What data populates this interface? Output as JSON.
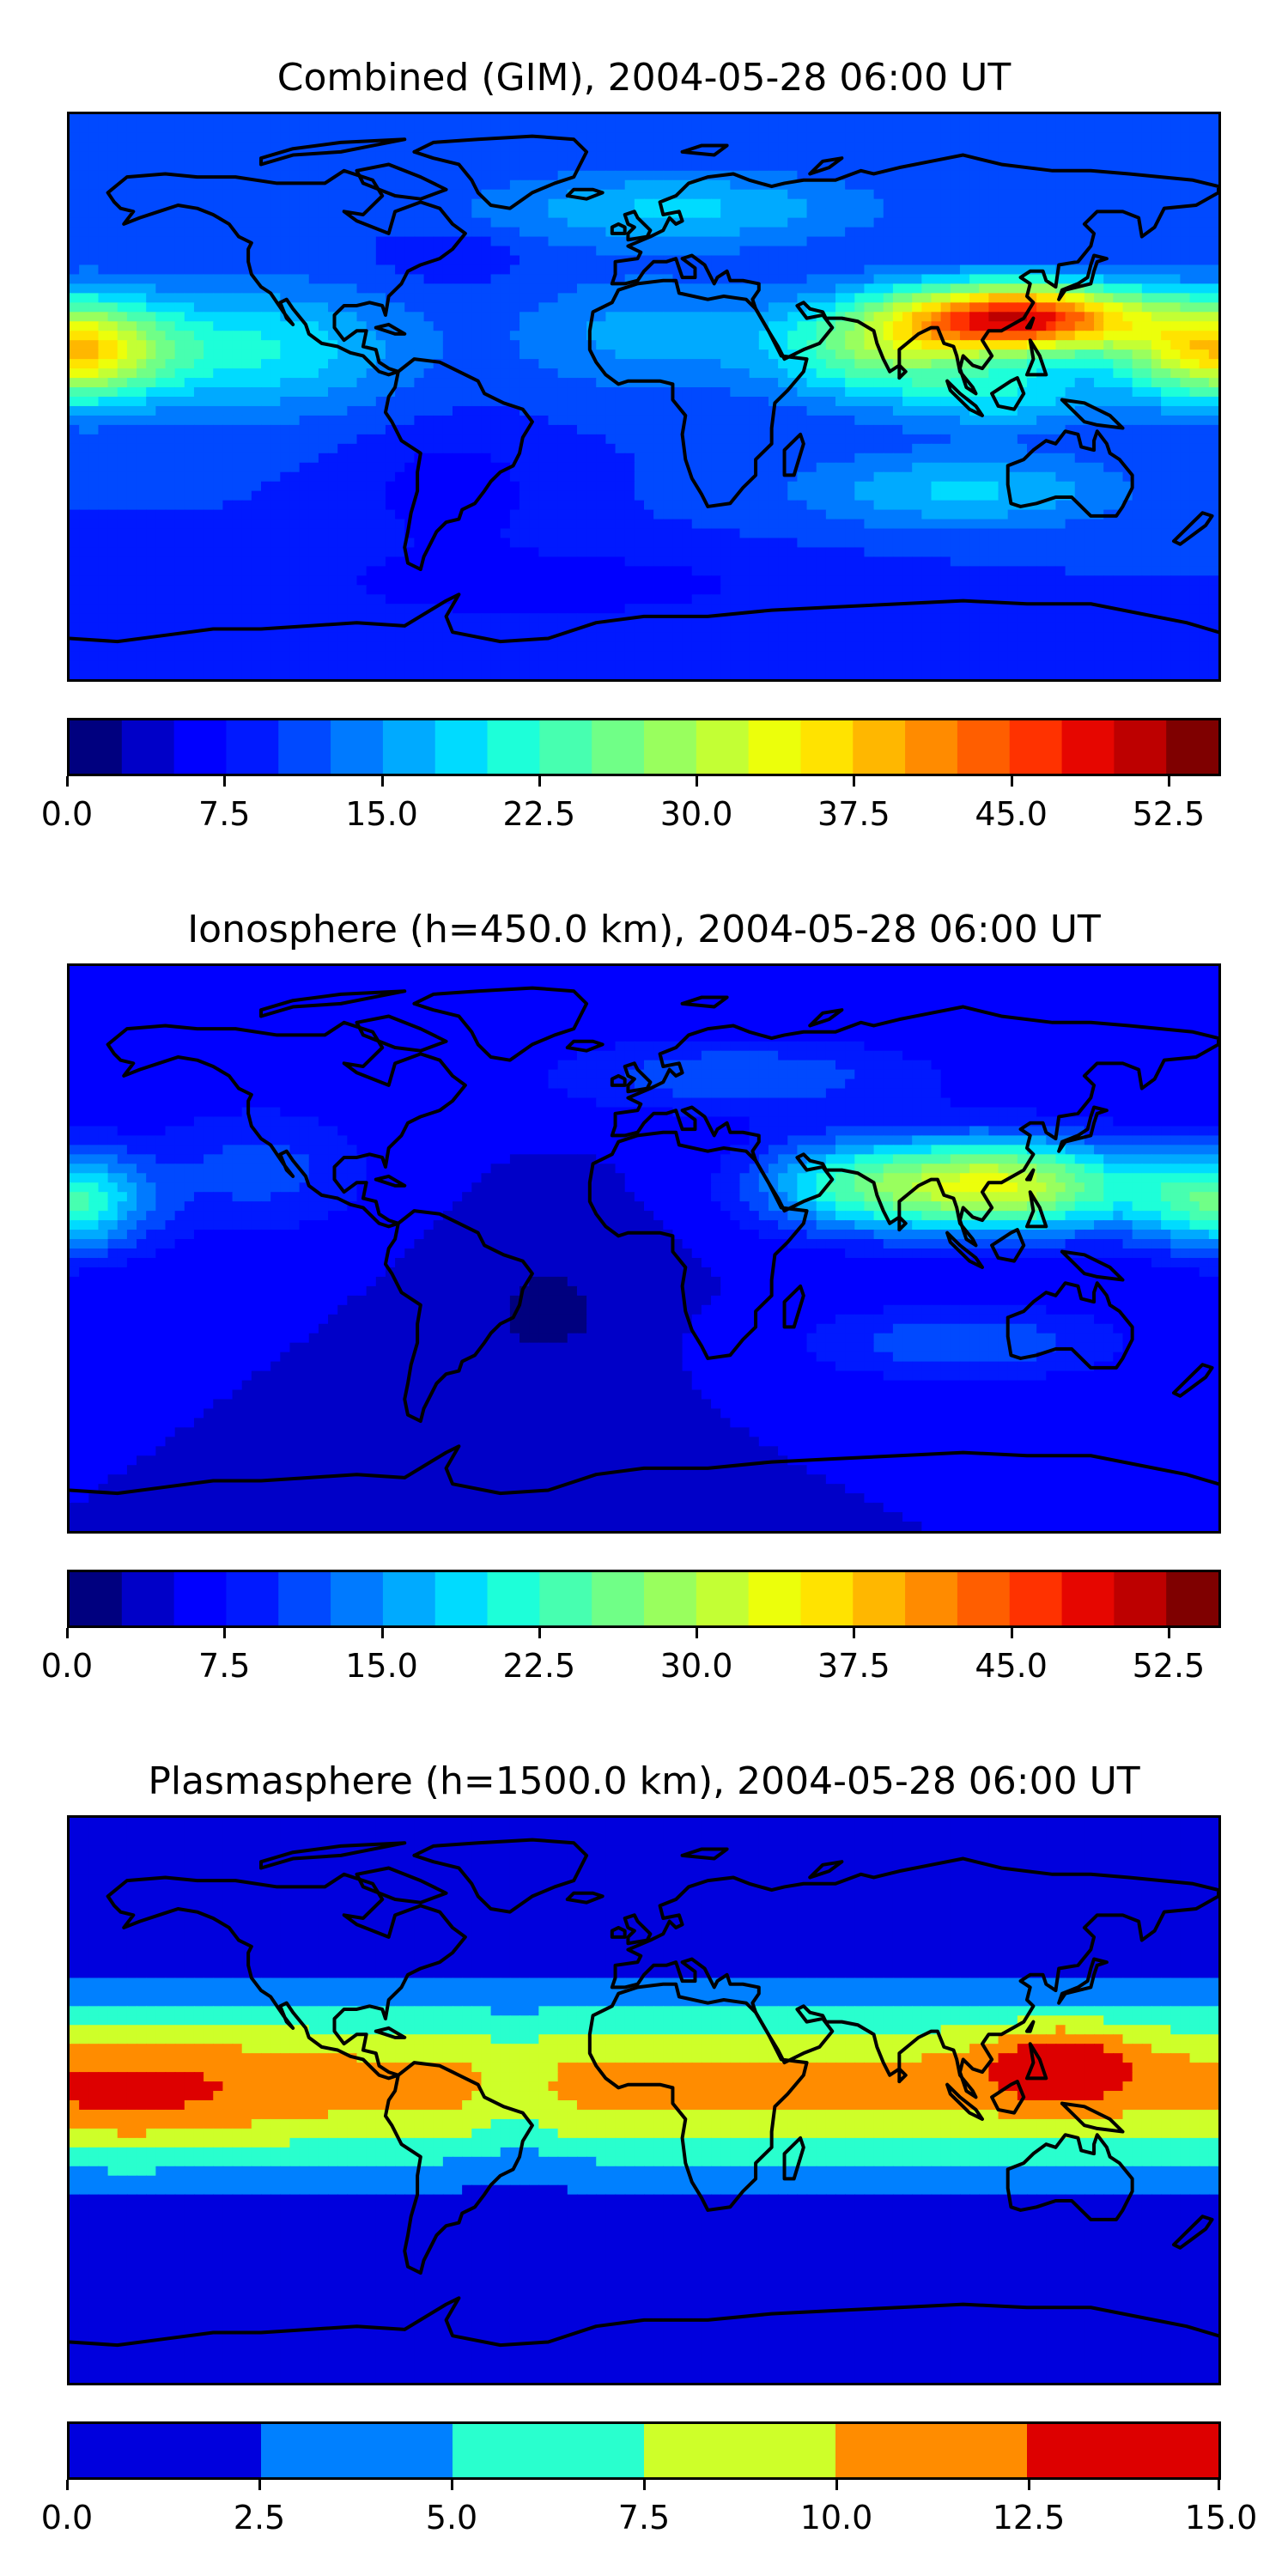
{
  "panels": [
    {
      "title": "Combined (GIM), 2004-05-28 06:00 UT",
      "colorbar": {
        "min": 0,
        "max": 55,
        "levels": 22,
        "ticks": [
          "0.0",
          "7.5",
          "15.0",
          "22.5",
          "30.0",
          "37.5",
          "45.0",
          "52.5"
        ],
        "tick_values": [
          0,
          7.5,
          15,
          22.5,
          30,
          37.5,
          45,
          52.5
        ],
        "colormap": "jet"
      },
      "field": {
        "base": 10,
        "features": [
          {
            "lon": 118,
            "lat": 25,
            "amp": 38,
            "sx": 38,
            "sy": 11,
            "note": "East Asia peak"
          },
          {
            "lon": 75,
            "lat": 15,
            "amp": 16,
            "sx": 35,
            "sy": 16
          },
          {
            "lon": 115,
            "lat": 0,
            "amp": 8,
            "sx": 30,
            "sy": 10
          },
          {
            "lon": -180,
            "lat": 15,
            "amp": 27,
            "sx": 30,
            "sy": 16
          },
          {
            "lon": 180,
            "lat": 15,
            "amp": 27,
            "sx": 30,
            "sy": 16
          },
          {
            "lon": -120,
            "lat": 15,
            "amp": 10,
            "sx": 45,
            "sy": 20
          },
          {
            "lon": 0,
            "lat": 20,
            "amp": 6,
            "sx": 40,
            "sy": 18
          },
          {
            "lon": 10,
            "lat": 60,
            "amp": 8,
            "sx": 60,
            "sy": 12
          },
          {
            "lon": 100,
            "lat": -30,
            "amp": 8,
            "sx": 50,
            "sy": 12
          },
          {
            "lon": -60,
            "lat": -30,
            "amp": -4,
            "sx": 30,
            "sy": 20
          },
          {
            "lon": -30,
            "lat": -60,
            "amp": -4,
            "sx": 80,
            "sy": 12
          },
          {
            "lon": -60,
            "lat": 45,
            "amp": -3,
            "sx": 20,
            "sy": 8
          }
        ]
      }
    },
    {
      "title": "Ionosphere  (h=450.0 km), 2004-05-28 06:00 UT",
      "colorbar": {
        "min": 0,
        "max": 55,
        "levels": 22,
        "ticks": [
          "0.0",
          "7.5",
          "15.0",
          "22.5",
          "30.0",
          "37.5",
          "45.0",
          "52.5"
        ],
        "tick_values": [
          0,
          7.5,
          15,
          22.5,
          30,
          37.5,
          45,
          52.5
        ],
        "colormap": "jet"
      },
      "field": {
        "base": 5,
        "features": [
          {
            "lon": 110,
            "lat": 20,
            "amp": 28,
            "sx": 45,
            "sy": 15
          },
          {
            "lon": 60,
            "lat": 20,
            "amp": 10,
            "sx": 30,
            "sy": 15
          },
          {
            "lon": -180,
            "lat": 15,
            "amp": 18,
            "sx": 25,
            "sy": 16
          },
          {
            "lon": 180,
            "lat": 15,
            "amp": 18,
            "sx": 25,
            "sy": 16
          },
          {
            "lon": -120,
            "lat": 25,
            "amp": 6,
            "sx": 35,
            "sy": 20
          },
          {
            "lon": 30,
            "lat": 55,
            "amp": 7,
            "sx": 60,
            "sy": 12
          },
          {
            "lon": 100,
            "lat": -30,
            "amp": 7,
            "sx": 50,
            "sy": 12
          },
          {
            "lon": -30,
            "lat": -20,
            "amp": -3,
            "sx": 30,
            "sy": 25
          }
        ]
      }
    },
    {
      "title": "Plasmasphere (h=1500.0 km), 2004-05-28 06:00 UT",
      "colorbar": {
        "min": 0,
        "max": 15,
        "levels": 6,
        "ticks": [
          "0.0",
          "2.5",
          "5.0",
          "7.5",
          "10.0",
          "12.5",
          "15.0"
        ],
        "tick_values": [
          0,
          2.5,
          5,
          7.5,
          10,
          12.5,
          15
        ],
        "colormap": "jet"
      },
      "field": {
        "base": 0,
        "band": {
          "lat": 5,
          "amp": 10.8,
          "sy": 28
        },
        "features": [
          {
            "lon": -160,
            "lat": 0,
            "amp": 2.6,
            "sx": 45,
            "sy": 22
          },
          {
            "lon": 130,
            "lat": 12,
            "amp": 5.8,
            "sx": 22,
            "sy": 12
          },
          {
            "lon": -40,
            "lat": 0,
            "amp": -2.0,
            "sx": 12,
            "sy": 25
          }
        ]
      }
    }
  ],
  "colors": {
    "jet22": [
      "#00007f",
      "#0000c8",
      "#0000ff",
      "#0019ff",
      "#0049ff",
      "#007aff",
      "#00aaff",
      "#00dbff",
      "#1dffd9",
      "#47ffb0",
      "#70ff87",
      "#99ff5e",
      "#c3ff34",
      "#ecff0b",
      "#ffe300",
      "#ffb700",
      "#ff8b00",
      "#ff5e00",
      "#ff3200",
      "#e60600",
      "#bd0000",
      "#7f0000"
    ],
    "jet6": [
      "#0000dd",
      "#0080ff",
      "#29ffce",
      "#ceff29",
      "#ff8c00",
      "#dd0000"
    ],
    "coastline": "#000000"
  }
}
